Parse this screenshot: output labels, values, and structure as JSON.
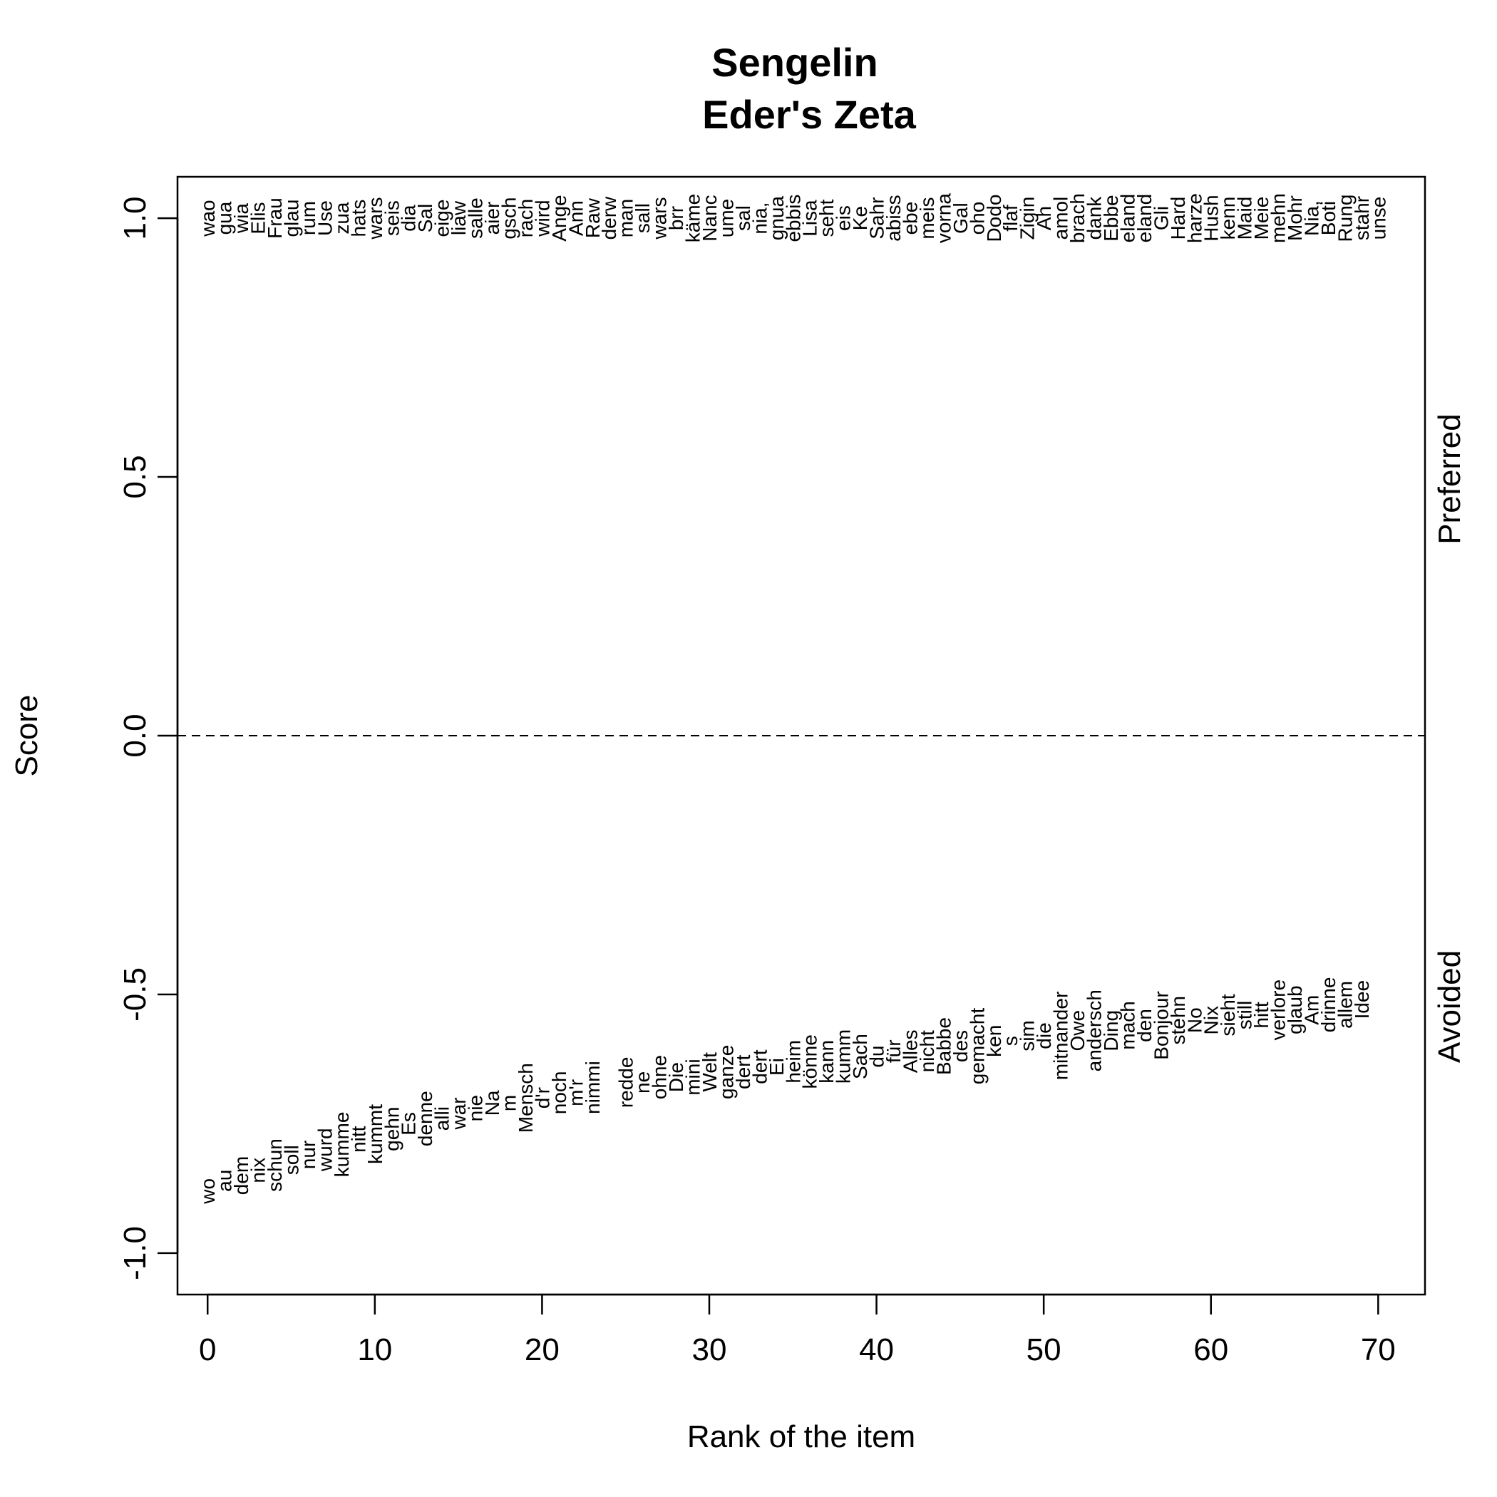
{
  "chart_data": {
    "type": "scatter",
    "title": "Sengelin",
    "subtitle": "Eder's Zeta",
    "xlabel": "Rank of the item",
    "ylabel": "Score",
    "xlim": [
      -1.8,
      72.8
    ],
    "ylim": [
      -1.08,
      1.08
    ],
    "xticks": [
      0,
      10,
      20,
      30,
      40,
      50,
      60,
      70
    ],
    "yticks": [
      -1.0,
      -0.5,
      0.0,
      0.5,
      1.0
    ],
    "xtick_labels": [
      "0",
      "10",
      "20",
      "30",
      "40",
      "50",
      "60",
      "70"
    ],
    "ytick_labels": [
      "-1.0",
      "-0.5",
      "0.0",
      "0.5",
      "1.0"
    ],
    "reference_line": {
      "y": 0,
      "style": "dashed"
    },
    "grid": false,
    "side_labels": {
      "preferred": "Preferred",
      "avoided": "Avoided"
    },
    "series": [
      {
        "label_kind": "preferred",
        "words": [
          "wao",
          "gua",
          "wia",
          "Elis",
          "Frau",
          "glau",
          "rum",
          "Use",
          "zua",
          "hats",
          "wars",
          "seis",
          "dia",
          "Sal",
          "eige",
          "liaw",
          "salle",
          "aier",
          "gsch",
          "rach",
          "wird",
          "Ange",
          "Ann",
          "Raw",
          "derw",
          "man",
          "sall",
          "wars",
          "brr",
          "käme",
          "Nanc",
          "ume",
          "sal",
          "nia,",
          "gnua",
          "ebbis",
          "Lisa",
          "seht",
          "eis",
          "Ke",
          "Sahr",
          "abiss",
          "ebe",
          "meis",
          "vorna",
          "Gal",
          "oho",
          "Dodo",
          "flaf",
          "Zigin",
          "Ah",
          "amol",
          "brach",
          "dank",
          "Ebbe",
          "eland",
          "eland",
          "Gli",
          "Hard",
          "harze",
          "Hush",
          "kenn",
          "Maid",
          "Meie",
          "mehn",
          "Mohr",
          "Nia,",
          "Boti",
          "Rung",
          "stahr",
          "unse"
        ],
        "x": [
          0,
          1,
          2,
          3,
          4,
          5,
          6,
          7,
          8,
          9,
          10,
          11,
          12,
          13,
          14,
          15,
          16,
          17,
          18,
          19,
          20,
          21,
          22,
          23,
          24,
          25,
          26,
          27,
          28,
          29,
          30,
          31,
          32,
          33,
          34,
          35,
          36,
          37,
          38,
          39,
          40,
          41,
          42,
          43,
          44,
          45,
          46,
          47,
          48,
          49,
          50,
          51,
          52,
          53,
          54,
          55,
          56,
          57,
          58,
          59,
          60,
          61,
          62,
          63,
          64,
          65,
          66,
          67,
          68,
          69,
          70
        ],
        "y": [
          1,
          1,
          1,
          1,
          1,
          1,
          1,
          1,
          1,
          1,
          1,
          1,
          1,
          1,
          1,
          1,
          1,
          1,
          1,
          1,
          1,
          1,
          1,
          1,
          1,
          1,
          1,
          1,
          1,
          1,
          1,
          1,
          1,
          1,
          1,
          1,
          1,
          1,
          1,
          1,
          1,
          1,
          1,
          1,
          1,
          1,
          1,
          1,
          1,
          1,
          1,
          1,
          1,
          1,
          1,
          1,
          1,
          1,
          1,
          1,
          1,
          1,
          1,
          1,
          1,
          1,
          1,
          1,
          1,
          1,
          1
        ]
      },
      {
        "label_kind": "avoided",
        "words": [
          "wo",
          "au",
          "dem",
          "nix",
          "schun",
          "soll",
          "nur",
          "wurd",
          "kumme",
          "nitt",
          "kummt",
          "gehn",
          "Es",
          "denne",
          "alli",
          "war",
          "nie",
          "Na",
          "m",
          "Mensch",
          "d'r",
          "noch",
          "m'r",
          "nimmi",
          "",
          "redde",
          "ne",
          "ohne",
          "Die",
          "mini",
          "Welt",
          "ganze",
          "dert",
          "dert",
          "Ei",
          "heim",
          "könne",
          "kann",
          "kumm",
          "Sach",
          "du",
          "für",
          "Alles",
          "nicht",
          "Babbe",
          "des",
          "gemacht",
          "ken",
          "s",
          "sim",
          "die",
          "mitnander",
          "Owe",
          "andersch",
          "Ding",
          "mach",
          "den",
          "Bonjour",
          "stehn",
          "No",
          "Nix",
          "sieht",
          "still",
          "hitt",
          "verlore",
          "glaub",
          "Am",
          "drinne",
          "allem",
          "Idee"
        ],
        "x": [
          0,
          1,
          2,
          3,
          4,
          5,
          6,
          7,
          8,
          9,
          10,
          11,
          12,
          13,
          14,
          15,
          16,
          17,
          18,
          19,
          20,
          21,
          22,
          23,
          24,
          25,
          26,
          27,
          28,
          29,
          30,
          31,
          32,
          33,
          34,
          35,
          36,
          37,
          38,
          39,
          40,
          41,
          42,
          43,
          44,
          45,
          46,
          47,
          48,
          49,
          50,
          51,
          52,
          53,
          54,
          55,
          56,
          57,
          58,
          59,
          60,
          61,
          62,
          63,
          64,
          65,
          66,
          67,
          68,
          69
        ],
        "y": [
          -0.88,
          -0.86,
          -0.85,
          -0.84,
          -0.83,
          -0.82,
          -0.81,
          -0.8,
          -0.79,
          -0.78,
          -0.77,
          -0.76,
          -0.75,
          -0.74,
          -0.74,
          -0.73,
          -0.72,
          -0.71,
          -0.71,
          -0.7,
          -0.7,
          -0.69,
          -0.69,
          -0.68,
          -0.68,
          -0.67,
          -0.67,
          -0.66,
          -0.66,
          -0.66,
          -0.65,
          -0.65,
          -0.65,
          -0.64,
          -0.64,
          -0.63,
          -0.63,
          -0.63,
          -0.62,
          -0.62,
          -0.62,
          -0.61,
          -0.61,
          -0.61,
          -0.6,
          -0.6,
          -0.6,
          -0.59,
          -0.59,
          -0.58,
          -0.58,
          -0.58,
          -0.57,
          -0.57,
          -0.57,
          -0.56,
          -0.56,
          -0.56,
          -0.55,
          -0.55,
          -0.55,
          -0.54,
          -0.54,
          -0.54,
          -0.53,
          -0.53,
          -0.53,
          -0.52,
          -0.52,
          -0.51
        ]
      }
    ]
  }
}
